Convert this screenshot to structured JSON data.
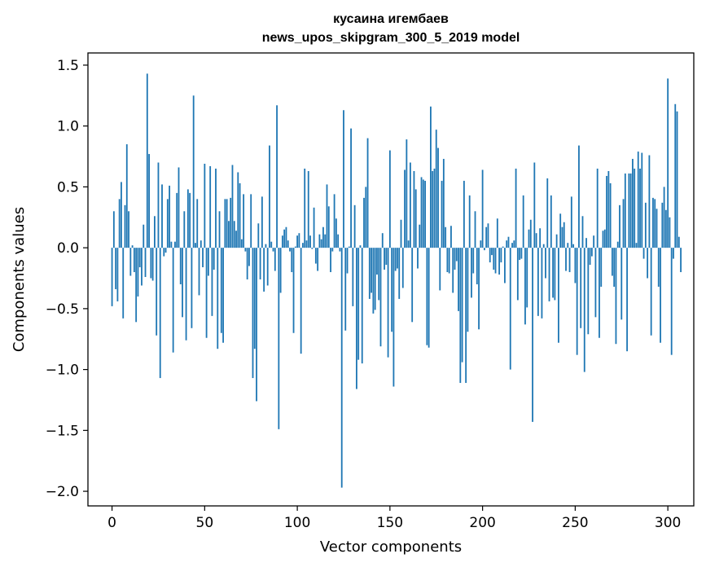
{
  "chart_data": {
    "type": "bar",
    "title": "кусаина игембаев",
    "subtitle": "news_upos_skipgram_300_5_2019 model",
    "xlabel": "Vector components",
    "ylabel": "Components values",
    "xlim": [
      -13,
      314
    ],
    "ylim": [
      -2.12,
      1.6
    ],
    "xticks": [
      0,
      50,
      100,
      150,
      200,
      250,
      300
    ],
    "yticks": [
      -2.0,
      -1.5,
      -1.0,
      -0.5,
      0.0,
      0.5,
      1.0,
      1.5
    ],
    "ytick_labels": [
      "−2.0",
      "−1.5",
      "−1.0",
      "−0.5",
      "0.0",
      "0.5",
      "1.0",
      "1.5"
    ],
    "bar_color": "#1f77b4",
    "values": [
      -0.48,
      0.3,
      -0.34,
      -0.44,
      0.4,
      0.54,
      -0.58,
      0.35,
      0.85,
      0.3,
      -0.23,
      0.02,
      -0.2,
      -0.61,
      -0.4,
      -0.16,
      -0.31,
      0.19,
      -0.24,
      1.43,
      0.77,
      -0.25,
      -0.27,
      0.26,
      -0.72,
      0.7,
      -1.07,
      0.52,
      -0.07,
      -0.04,
      0.4,
      0.51,
      0.05,
      -0.86,
      0.05,
      0.45,
      0.66,
      -0.3,
      -0.57,
      0.3,
      -0.76,
      0.48,
      0.45,
      -0.66,
      1.25,
      0.04,
      0.4,
      -0.39,
      0.06,
      -0.16,
      0.69,
      -0.74,
      -0.23,
      0.67,
      -0.56,
      -0.18,
      0.65,
      -0.83,
      0.3,
      -0.7,
      -0.78,
      0.4,
      0.4,
      0.22,
      0.41,
      0.68,
      0.22,
      0.14,
      0.62,
      0.53,
      0.07,
      0.44,
      -0.03,
      -0.26,
      -0.15,
      0.44,
      -1.07,
      -0.83,
      -1.26,
      0.2,
      -0.26,
      0.42,
      -0.36,
      0.03,
      -0.31,
      0.84,
      0.05,
      -0.03,
      -0.19,
      1.17,
      -1.49,
      -0.37,
      0.1,
      0.15,
      0.17,
      0.06,
      -0.03,
      -0.2,
      -0.7,
      0.01,
      0.1,
      0.12,
      -0.87,
      0.04,
      0.65,
      0.06,
      0.63,
      0.1,
      -0.01,
      0.33,
      -0.13,
      -0.19,
      0.11,
      0.07,
      0.17,
      0.11,
      0.52,
      0.34,
      -0.2,
      -0.03,
      0.44,
      0.24,
      0.11,
      -0.03,
      -1.97,
      1.13,
      -0.68,
      -0.21,
      0.01,
      0.98,
      -0.48,
      0.35,
      -1.16,
      -0.92,
      0.02,
      -0.95,
      0.41,
      0.5,
      0.9,
      -0.42,
      -0.37,
      -0.54,
      -0.51,
      -0.22,
      -0.43,
      -0.81,
      0.12,
      -0.18,
      -0.14,
      -0.9,
      0.8,
      -0.69,
      -1.14,
      -0.19,
      -0.17,
      -0.42,
      0.23,
      -0.33,
      0.64,
      0.89,
      0.06,
      0.7,
      -0.61,
      0.63,
      0.48,
      -0.17,
      0.19,
      0.58,
      0.56,
      0.55,
      -0.8,
      -0.82,
      1.16,
      0.63,
      0.65,
      0.97,
      0.82,
      -0.35,
      0.55,
      0.73,
      0.17,
      -0.2,
      -0.21,
      0.18,
      -0.37,
      -0.18,
      -0.11,
      -0.52,
      -1.11,
      -0.94,
      0.55,
      -1.11,
      -0.69,
      0.43,
      -0.41,
      -0.21,
      0.3,
      -0.3,
      -0.67,
      0.06,
      0.64,
      -0.02,
      0.17,
      0.2,
      -0.12,
      -0.06,
      -0.18,
      -0.21,
      0.24,
      -0.22,
      -0.12,
      0.01,
      -0.29,
      0.06,
      0.09,
      -1.0,
      0.04,
      0.06,
      0.65,
      -0.43,
      -0.1,
      -0.09,
      0.43,
      -0.63,
      -0.49,
      0.15,
      0.23,
      -1.43,
      0.7,
      0.12,
      -0.56,
      0.16,
      -0.58,
      0.03,
      -0.25,
      0.57,
      -0.44,
      0.43,
      -0.41,
      -0.43,
      0.11,
      -0.78,
      0.28,
      0.17,
      0.21,
      -0.19,
      0.04,
      -0.2,
      0.42,
      0.03,
      -0.29,
      -0.88,
      0.84,
      -0.66,
      0.26,
      -1.02,
      0.08,
      -0.71,
      -0.14,
      -0.07,
      0.1,
      -0.57,
      0.65,
      -0.74,
      -0.32,
      0.14,
      0.15,
      0.59,
      0.63,
      0.53,
      -0.23,
      -0.32,
      -0.79,
      0.05,
      0.35,
      -0.59,
      0.4,
      0.61,
      -0.85,
      0.61,
      0.61,
      0.73,
      0.65,
      0.04,
      0.79,
      0.65,
      0.78,
      -0.09,
      0.37,
      -0.25,
      0.76,
      -0.72,
      0.41,
      0.4,
      0.32,
      -0.32,
      -0.78,
      0.37,
      0.5,
      0.31,
      1.39,
      0.25,
      -0.88,
      -0.09,
      1.18,
      1.12,
      0.09,
      -0.2
    ],
    "grid": false,
    "legend": "none"
  }
}
